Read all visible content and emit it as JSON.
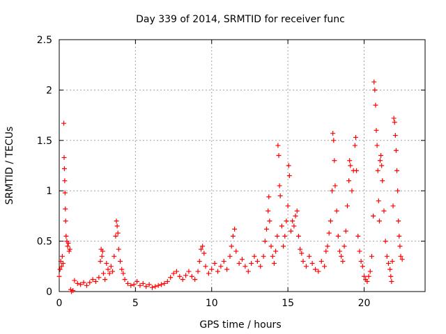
{
  "chart_data": {
    "type": "scatter",
    "title": "Day 339 of 2014, SRMTID for receiver func",
    "xlabel": "GPS time / hours",
    "ylabel": "SRMTID / TECUs",
    "xlim": [
      0,
      24
    ],
    "ylim": [
      0,
      2.5
    ],
    "xticks": [
      0,
      5,
      10,
      15,
      20
    ],
    "yticks": [
      0,
      0.5,
      1,
      1.5,
      2,
      2.5
    ],
    "xtick_labels": [
      "0",
      "5",
      "10",
      "15",
      "20"
    ],
    "ytick_labels": [
      "0",
      "0.5",
      "1",
      "1.5",
      "2",
      "2.5"
    ],
    "grid": true,
    "marker": "+",
    "marker_color": "#ff0000",
    "series": [
      {
        "name": "SRMTID",
        "points": [
          [
            0.0,
            0.15
          ],
          [
            0.05,
            0.22
          ],
          [
            0.1,
            0.3
          ],
          [
            0.15,
            0.25
          ],
          [
            0.2,
            0.35
          ],
          [
            0.25,
            0.28
          ],
          [
            0.3,
            1.67
          ],
          [
            0.32,
            1.33
          ],
          [
            0.34,
            1.22
          ],
          [
            0.36,
            1.1
          ],
          [
            0.38,
            0.98
          ],
          [
            0.4,
            0.82
          ],
          [
            0.42,
            0.7
          ],
          [
            0.45,
            0.55
          ],
          [
            0.5,
            0.5
          ],
          [
            0.55,
            0.45
          ],
          [
            0.6,
            0.48
          ],
          [
            0.65,
            0.4
          ],
          [
            0.7,
            0.42
          ],
          [
            0.75,
            0.02
          ],
          [
            0.8,
            0.0
          ],
          [
            0.9,
            0.01
          ],
          [
            1.0,
            0.11
          ],
          [
            1.2,
            0.08
          ],
          [
            1.4,
            0.07
          ],
          [
            1.6,
            0.09
          ],
          [
            1.8,
            0.06
          ],
          [
            2.0,
            0.09
          ],
          [
            2.2,
            0.12
          ],
          [
            2.4,
            0.1
          ],
          [
            2.6,
            0.14
          ],
          [
            2.7,
            0.3
          ],
          [
            2.75,
            0.42
          ],
          [
            2.8,
            0.35
          ],
          [
            2.85,
            0.4
          ],
          [
            2.9,
            0.18
          ],
          [
            3.0,
            0.12
          ],
          [
            3.1,
            0.28
          ],
          [
            3.2,
            0.22
          ],
          [
            3.3,
            0.18
          ],
          [
            3.4,
            0.25
          ],
          [
            3.5,
            0.2
          ],
          [
            3.6,
            0.35
          ],
          [
            3.7,
            0.55
          ],
          [
            3.75,
            0.7
          ],
          [
            3.8,
            0.65
          ],
          [
            3.85,
            0.58
          ],
          [
            3.9,
            0.42
          ],
          [
            4.0,
            0.3
          ],
          [
            4.1,
            0.22
          ],
          [
            4.2,
            0.18
          ],
          [
            4.3,
            0.12
          ],
          [
            4.5,
            0.08
          ],
          [
            4.7,
            0.06
          ],
          [
            4.9,
            0.07
          ],
          [
            5.1,
            0.1
          ],
          [
            5.3,
            0.06
          ],
          [
            5.5,
            0.08
          ],
          [
            5.7,
            0.05
          ],
          [
            5.9,
            0.07
          ],
          [
            6.1,
            0.04
          ],
          [
            6.3,
            0.05
          ],
          [
            6.5,
            0.06
          ],
          [
            6.7,
            0.07
          ],
          [
            6.9,
            0.08
          ],
          [
            7.1,
            0.1
          ],
          [
            7.3,
            0.14
          ],
          [
            7.5,
            0.18
          ],
          [
            7.7,
            0.2
          ],
          [
            7.9,
            0.15
          ],
          [
            8.1,
            0.12
          ],
          [
            8.3,
            0.16
          ],
          [
            8.5,
            0.2
          ],
          [
            8.7,
            0.15
          ],
          [
            8.9,
            0.12
          ],
          [
            9.1,
            0.2
          ],
          [
            9.2,
            0.3
          ],
          [
            9.3,
            0.42
          ],
          [
            9.4,
            0.45
          ],
          [
            9.5,
            0.38
          ],
          [
            9.6,
            0.25
          ],
          [
            9.8,
            0.18
          ],
          [
            10.0,
            0.22
          ],
          [
            10.2,
            0.28
          ],
          [
            10.4,
            0.2
          ],
          [
            10.6,
            0.25
          ],
          [
            10.8,
            0.3
          ],
          [
            11.0,
            0.22
          ],
          [
            11.2,
            0.35
          ],
          [
            11.3,
            0.45
          ],
          [
            11.4,
            0.55
          ],
          [
            11.5,
            0.62
          ],
          [
            11.6,
            0.4
          ],
          [
            11.8,
            0.28
          ],
          [
            12.0,
            0.32
          ],
          [
            12.2,
            0.25
          ],
          [
            12.4,
            0.2
          ],
          [
            12.6,
            0.28
          ],
          [
            12.8,
            0.35
          ],
          [
            13.0,
            0.3
          ],
          [
            13.2,
            0.25
          ],
          [
            13.4,
            0.35
          ],
          [
            13.5,
            0.5
          ],
          [
            13.6,
            0.62
          ],
          [
            13.7,
            0.8
          ],
          [
            13.75,
            0.94
          ],
          [
            13.8,
            0.7
          ],
          [
            13.9,
            0.45
          ],
          [
            14.0,
            0.35
          ],
          [
            14.1,
            0.28
          ],
          [
            14.2,
            0.4
          ],
          [
            14.3,
            0.55
          ],
          [
            14.35,
            1.45
          ],
          [
            14.4,
            1.35
          ],
          [
            14.45,
            1.05
          ],
          [
            14.5,
            0.95
          ],
          [
            14.6,
            0.65
          ],
          [
            14.7,
            0.45
          ],
          [
            14.8,
            0.55
          ],
          [
            14.9,
            0.7
          ],
          [
            15.0,
            0.85
          ],
          [
            15.05,
            1.25
          ],
          [
            15.1,
            1.15
          ],
          [
            15.2,
            0.6
          ],
          [
            15.3,
            0.7
          ],
          [
            15.4,
            0.65
          ],
          [
            15.5,
            0.75
          ],
          [
            15.6,
            0.8
          ],
          [
            15.7,
            0.55
          ],
          [
            15.8,
            0.42
          ],
          [
            15.9,
            0.38
          ],
          [
            16.0,
            0.3
          ],
          [
            16.2,
            0.25
          ],
          [
            16.4,
            0.35
          ],
          [
            16.6,
            0.28
          ],
          [
            16.8,
            0.22
          ],
          [
            17.0,
            0.2
          ],
          [
            17.2,
            0.3
          ],
          [
            17.4,
            0.25
          ],
          [
            17.5,
            0.4
          ],
          [
            17.6,
            0.45
          ],
          [
            17.7,
            0.58
          ],
          [
            17.8,
            0.7
          ],
          [
            17.9,
            1.0
          ],
          [
            17.95,
            1.57
          ],
          [
            18.0,
            1.5
          ],
          [
            18.05,
            1.3
          ],
          [
            18.1,
            1.05
          ],
          [
            18.2,
            0.8
          ],
          [
            18.3,
            0.55
          ],
          [
            18.4,
            0.4
          ],
          [
            18.5,
            0.35
          ],
          [
            18.6,
            0.3
          ],
          [
            18.7,
            0.45
          ],
          [
            18.8,
            0.6
          ],
          [
            18.9,
            0.85
          ],
          [
            19.0,
            1.1
          ],
          [
            19.05,
            1.3
          ],
          [
            19.1,
            1.25
          ],
          [
            19.2,
            1.0
          ],
          [
            19.3,
            1.2
          ],
          [
            19.4,
            1.45
          ],
          [
            19.45,
            1.53
          ],
          [
            19.5,
            1.2
          ],
          [
            19.6,
            0.55
          ],
          [
            19.7,
            0.4
          ],
          [
            19.8,
            0.3
          ],
          [
            19.9,
            0.25
          ],
          [
            20.0,
            0.15
          ],
          [
            20.1,
            0.12
          ],
          [
            20.2,
            0.1
          ],
          [
            20.3,
            0.15
          ],
          [
            20.4,
            0.2
          ],
          [
            20.5,
            0.35
          ],
          [
            20.6,
            0.75
          ],
          [
            20.65,
            2.08
          ],
          [
            20.7,
            2.0
          ],
          [
            20.75,
            1.85
          ],
          [
            20.8,
            1.6
          ],
          [
            20.85,
            1.45
          ],
          [
            20.9,
            1.2
          ],
          [
            20.95,
            0.9
          ],
          [
            21.0,
            0.7
          ],
          [
            21.05,
            1.3
          ],
          [
            21.1,
            1.35
          ],
          [
            21.15,
            1.25
          ],
          [
            21.2,
            1.1
          ],
          [
            21.3,
            0.8
          ],
          [
            21.4,
            0.5
          ],
          [
            21.5,
            0.35
          ],
          [
            21.6,
            0.28
          ],
          [
            21.7,
            0.22
          ],
          [
            21.75,
            0.15
          ],
          [
            21.8,
            0.1
          ],
          [
            21.85,
            0.3
          ],
          [
            21.9,
            0.85
          ],
          [
            21.95,
            1.72
          ],
          [
            22.0,
            1.68
          ],
          [
            22.05,
            1.55
          ],
          [
            22.1,
            1.4
          ],
          [
            22.15,
            1.2
          ],
          [
            22.2,
            1.0
          ],
          [
            22.25,
            0.7
          ],
          [
            22.3,
            0.55
          ],
          [
            22.35,
            0.45
          ],
          [
            22.4,
            0.35
          ],
          [
            22.5,
            0.32
          ]
        ]
      }
    ]
  }
}
